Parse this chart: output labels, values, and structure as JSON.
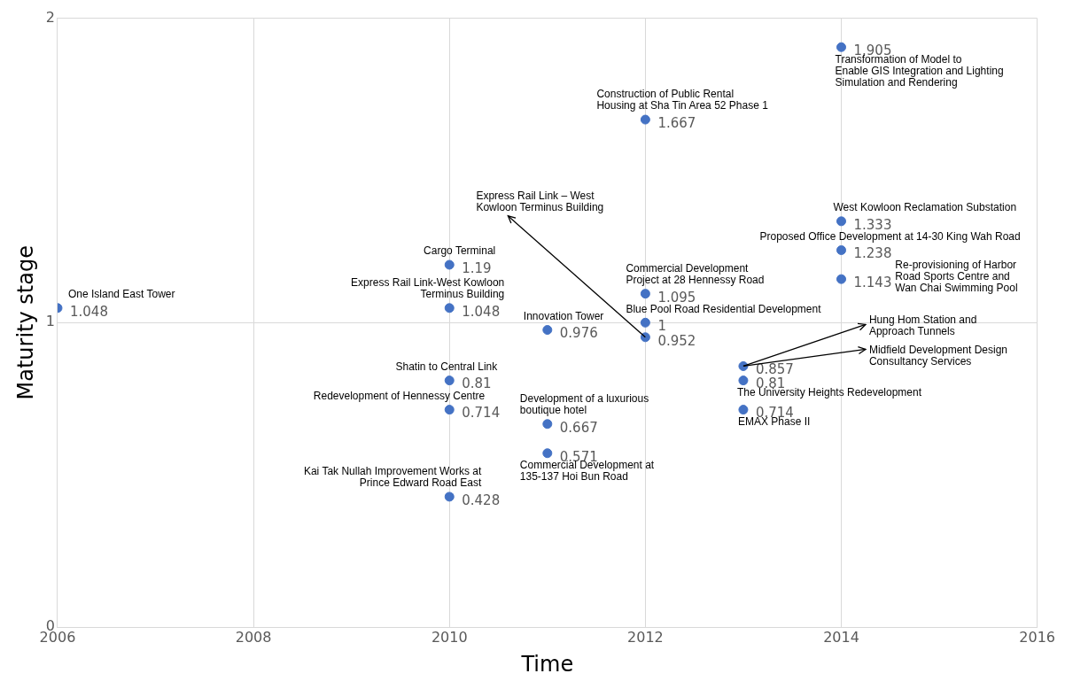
{
  "chart_data": {
    "type": "scatter",
    "xlabel": "Time",
    "ylabel": "Maturity stage",
    "x": [
      2006,
      2010,
      2010,
      2010,
      2010,
      2010,
      2011,
      2011,
      2011,
      2012,
      2012,
      2012,
      2012,
      2013,
      2013,
      2013,
      2014,
      2014,
      2014,
      2014
    ],
    "series": [
      {
        "color": "#4472c4",
        "values": [
          1.048,
          1.19,
          1.048,
          0.81,
          0.714,
          0.428,
          0.976,
          0.667,
          0.571,
          1.667,
          1.095,
          1,
          0.952,
          0.857,
          0.81,
          0.714,
          1.905,
          1.333,
          1.238,
          1.143
        ]
      }
    ],
    "xlim": [
      2006,
      2016
    ],
    "xticks": [
      2006,
      2008,
      2010,
      2012,
      2014,
      2016
    ],
    "ylim": [
      0,
      2
    ],
    "yticks": [
      0,
      1,
      2
    ],
    "grid": true,
    "legend": false,
    "marker": "circle",
    "data_labels": true,
    "annotations": [
      {
        "text": "One Island East Tower",
        "x": 2006,
        "y": 1.048
      },
      {
        "text": "Cargo Terminal",
        "x": 2010,
        "y": 1.19
      },
      {
        "text": "Express Rail Link-West Kowloon Terminus Building",
        "x": 2010,
        "y": 1.048
      },
      {
        "text": "Shatin to Central Link",
        "x": 2010,
        "y": 0.81
      },
      {
        "text": "Redevelopment of Hennessy Centre",
        "x": 2010,
        "y": 0.714
      },
      {
        "text": "Kai Tak Nullah Improvement Works at Prince Edward Road East",
        "x": 2010,
        "y": 0.428
      },
      {
        "text": "Innovation Tower",
        "x": 2011,
        "y": 0.976
      },
      {
        "text": "Development of a luxurious boutique hotel",
        "x": 2011,
        "y": 0.667
      },
      {
        "text": "Commercial Development at 135-137 Hoi Bun Road",
        "x": 2011,
        "y": 0.571
      },
      {
        "text": "Construction of Public Rental Housing at Sha Tin Area 52 Phase 1",
        "x": 2012,
        "y": 1.667
      },
      {
        "text": "Commercial Development Project at 28 Hennessy Road",
        "x": 2012,
        "y": 1.095
      },
      {
        "text": "Blue Pool Road Residential Development",
        "x": 2012,
        "y": 1
      },
      {
        "text": "Express Rail Link – West Kowloon Terminus Building",
        "x": 2012,
        "y": 0.952
      },
      {
        "text": "Hung Hom Station and Approach Tunnels",
        "x": 2013,
        "y": 0.857
      },
      {
        "text": "Midfield Development Design Consultancy Services",
        "x": 2013,
        "y": 0.857
      },
      {
        "text": "The University Heights Redevelopment",
        "x": 2013,
        "y": 0.81
      },
      {
        "text": "EMAX Phase II",
        "x": 2013,
        "y": 0.714
      },
      {
        "text": "Transformation of Model to Enable GIS Integration and Lighting Simulation and Rendering",
        "x": 2014,
        "y": 1.905
      },
      {
        "text": "West Kowloon Reclamation Substation",
        "x": 2014,
        "y": 1.333
      },
      {
        "text": "Proposed Office Development at 14-30 King Wah Road",
        "x": 2014,
        "y": 1.238
      },
      "Re-provisioning of Harbor Road Sports Centre and Wan Chai Swimming Pool"
    ]
  }
}
